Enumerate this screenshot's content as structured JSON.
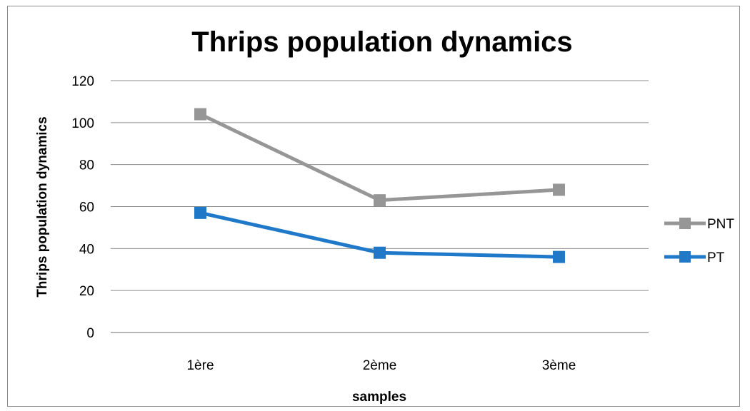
{
  "chart_data": {
    "type": "line",
    "title": "Thrips population dynamics",
    "xlabel": "samples",
    "ylabel": "Thrips population dynamics",
    "categories": [
      "1ère",
      "2ème",
      "3ème"
    ],
    "ylim": [
      0,
      120
    ],
    "yticks": [
      0,
      20,
      40,
      60,
      80,
      100,
      120
    ],
    "grid": true,
    "legend_position": "right",
    "series": [
      {
        "name": "PNT",
        "values": [
          104,
          63,
          68
        ],
        "color": "#969696",
        "marker": "square"
      },
      {
        "name": "PT",
        "values": [
          57,
          38,
          36
        ],
        "color": "#1f78c8",
        "marker": "square"
      }
    ]
  }
}
